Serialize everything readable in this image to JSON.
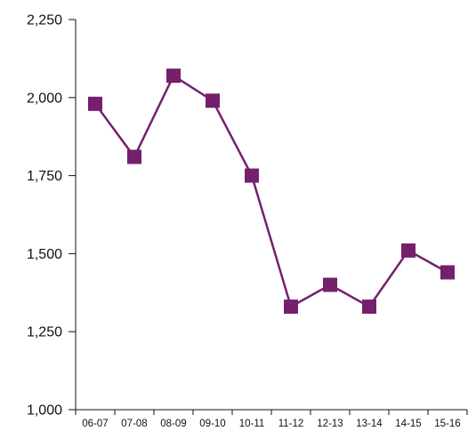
{
  "chart_data": {
    "type": "line",
    "title": "",
    "xlabel": "",
    "ylabel": "",
    "categories": [
      "06-07",
      "07-08",
      "08-09",
      "09-10",
      "10-11",
      "11-12",
      "12-13",
      "13-14",
      "14-15",
      "15-16"
    ],
    "series": [
      {
        "values": [
          1980,
          1810,
          2070,
          1990,
          1750,
          1330,
          1400,
          1330,
          1510,
          1440
        ],
        "color": "#74206d",
        "marker": "square"
      }
    ],
    "ylim": [
      1000,
      2250
    ],
    "yticks": [
      1000,
      1250,
      1500,
      1750,
      2000,
      2250
    ],
    "ytick_labels": [
      "1,000",
      "1,250",
      "1,500",
      "1,750",
      "2,000",
      "2,250"
    ],
    "grid": false,
    "legend": "none"
  }
}
